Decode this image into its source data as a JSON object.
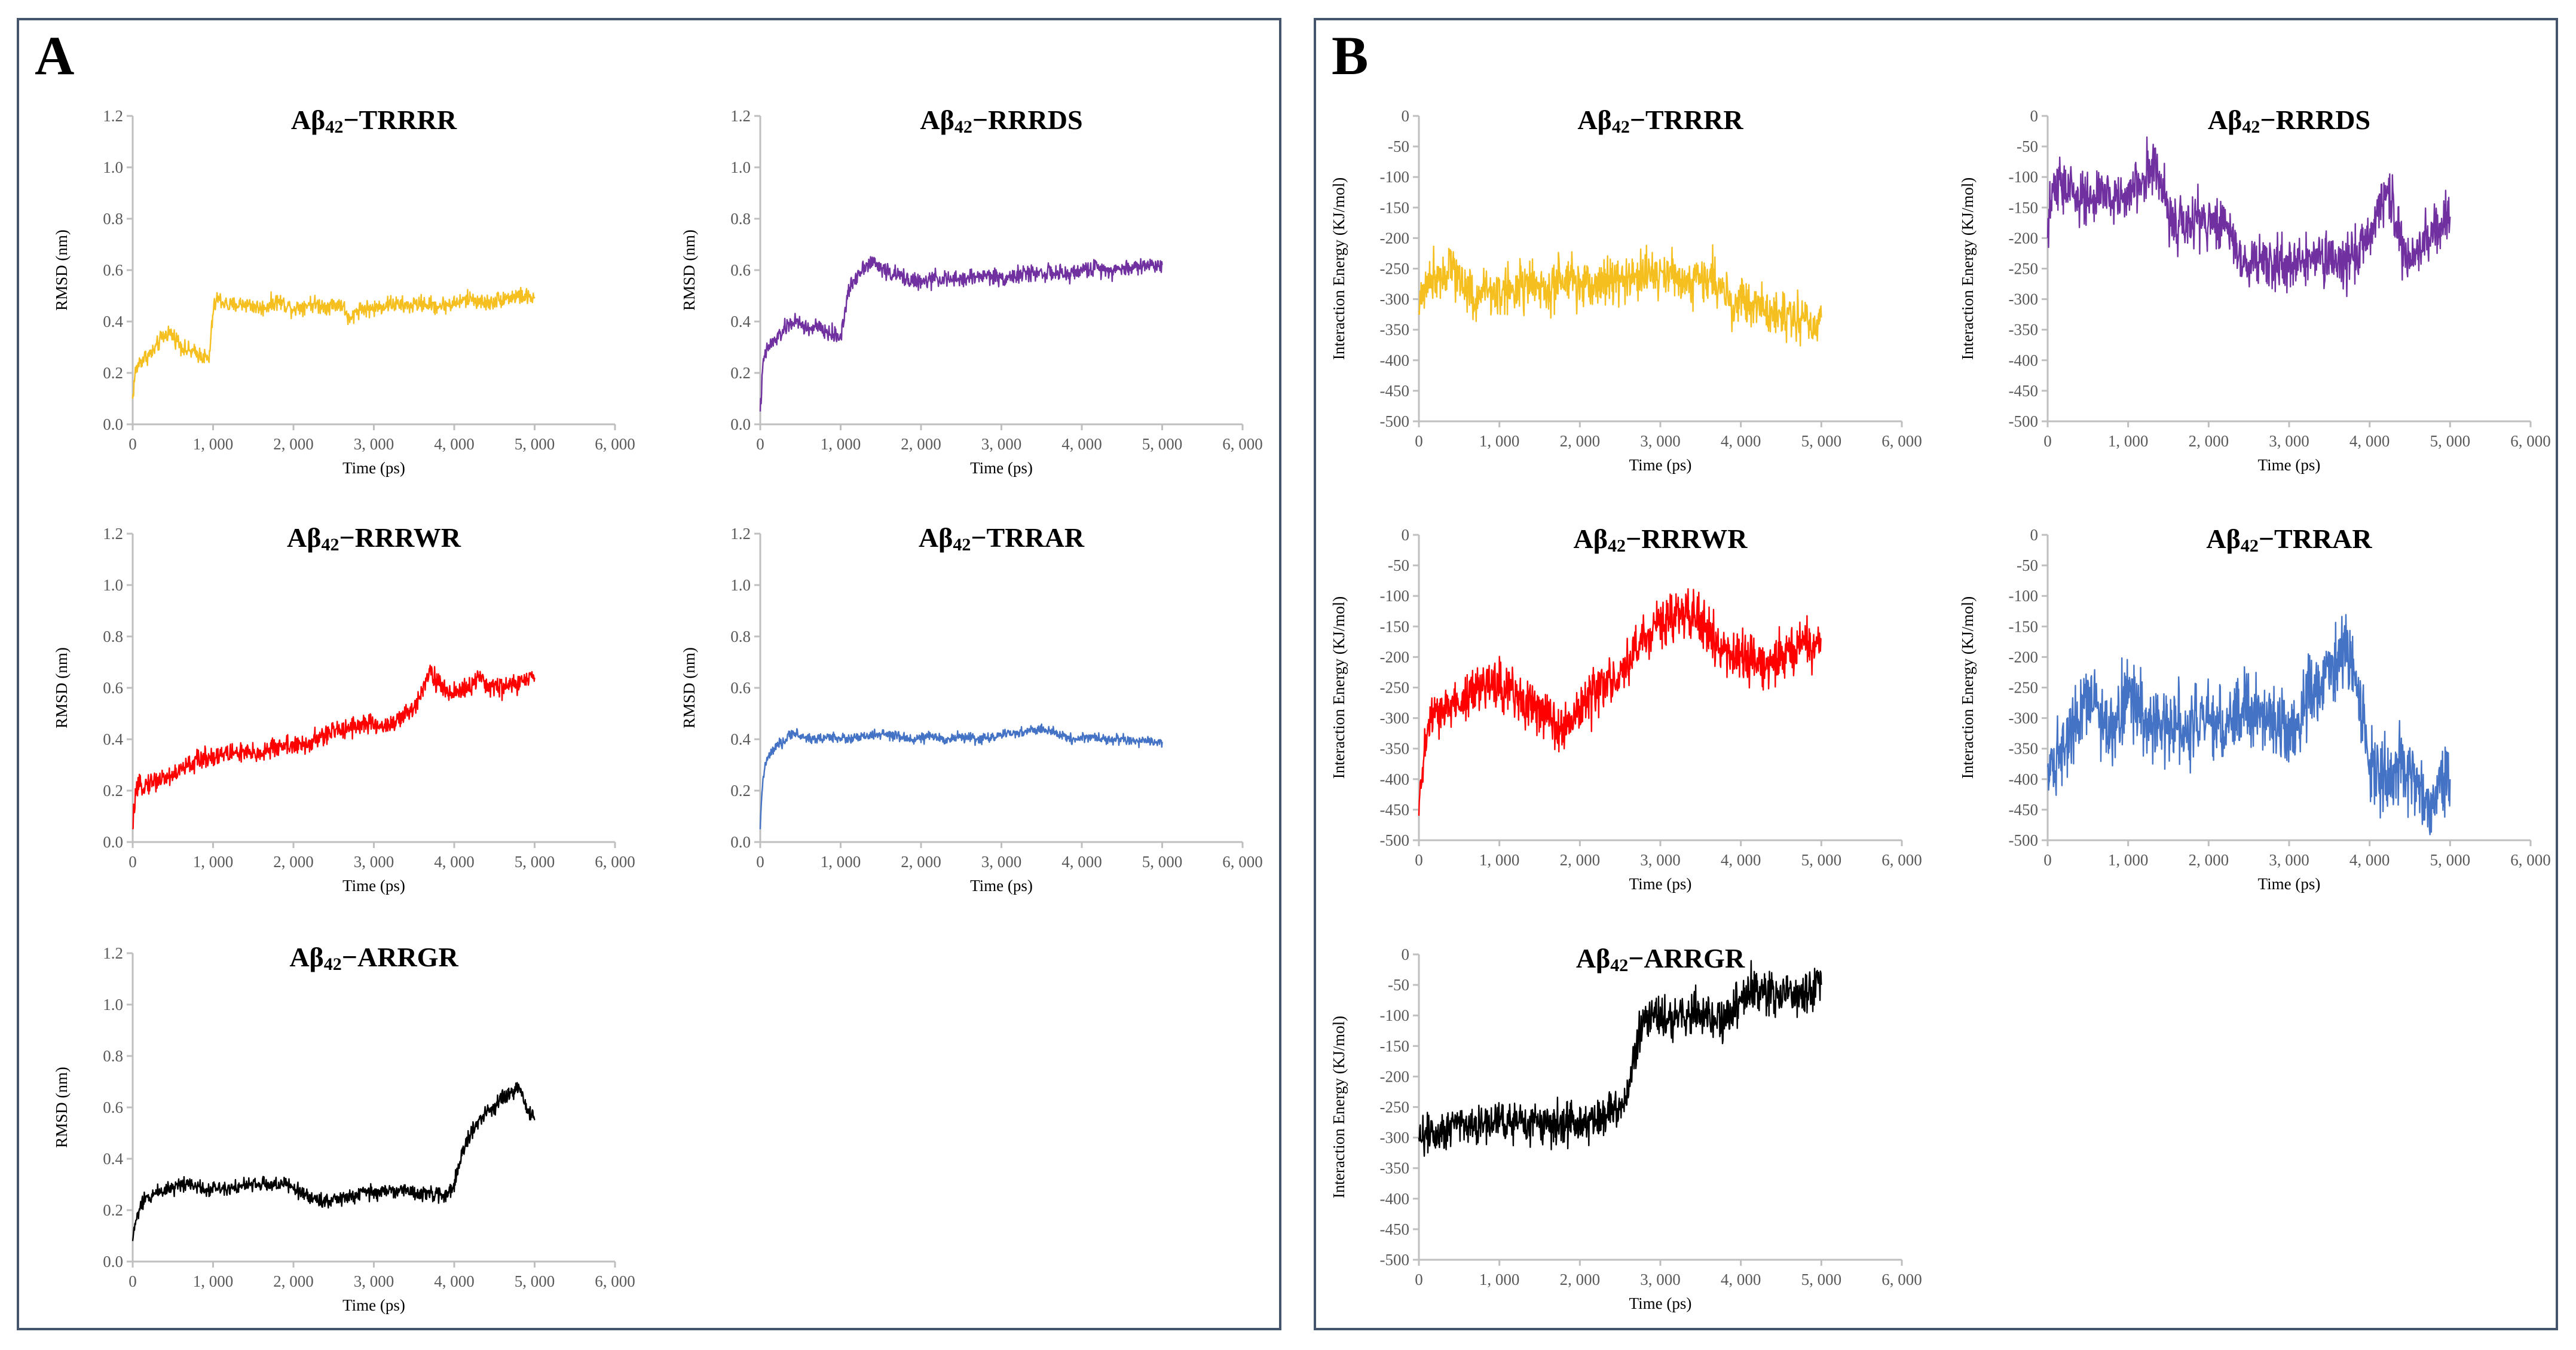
{
  "panels": [
    {
      "id": "A",
      "label": "A"
    },
    {
      "id": "B",
      "label": "B"
    }
  ],
  "chart_data": [
    {
      "panel": "A",
      "type": "line",
      "title_base": "Aβ",
      "title_sub": "42",
      "title_suffix": "−TRRRR",
      "color": "#f5bf1f",
      "xlabel": "Time (ps)",
      "ylabel": "RMSD (nm)",
      "xlim": [
        0,
        6000
      ],
      "ylim": [
        0,
        1.2
      ],
      "xticks": [
        "0",
        "1, 000",
        "2, 000",
        "3, 000",
        "4, 000",
        "5, 000",
        "6, 000"
      ],
      "yticks": [
        "0.0",
        "0.2",
        "0.4",
        "0.6",
        "0.8",
        "1.0",
        "1.2"
      ],
      "x": [
        0,
        30,
        80,
        150,
        250,
        350,
        450,
        550,
        650,
        750,
        850,
        950,
        1000,
        1050,
        1200,
        1400,
        1600,
        1800,
        2000,
        2200,
        2400,
        2600,
        2700,
        2800,
        3000,
        3200,
        3400,
        3600,
        3800,
        4000,
        4200,
        4400,
        4600,
        4800,
        5000
      ],
      "y": [
        0.1,
        0.2,
        0.24,
        0.26,
        0.28,
        0.33,
        0.36,
        0.33,
        0.29,
        0.28,
        0.27,
        0.25,
        0.44,
        0.49,
        0.46,
        0.47,
        0.45,
        0.48,
        0.45,
        0.47,
        0.46,
        0.47,
        0.4,
        0.45,
        0.45,
        0.47,
        0.46,
        0.47,
        0.46,
        0.47,
        0.49,
        0.47,
        0.49,
        0.5,
        0.49
      ],
      "noise": 0.02
    },
    {
      "panel": "A",
      "type": "line",
      "title_base": "Aβ",
      "title_sub": "42",
      "title_suffix": "−RRRDS",
      "color": "#7030a0",
      "xlabel": "Time (ps)",
      "ylabel": "RMSD (nm)",
      "xlim": [
        0,
        6000
      ],
      "ylim": [
        0,
        1.2
      ],
      "xticks": [
        "0",
        "1, 000",
        "2, 000",
        "3, 000",
        "4, 000",
        "5, 000",
        "6, 000"
      ],
      "yticks": [
        "0.0",
        "0.2",
        "0.4",
        "0.6",
        "0.8",
        "1.0",
        "1.2"
      ],
      "x": [
        0,
        40,
        100,
        200,
        300,
        400,
        500,
        600,
        700,
        800,
        900,
        1000,
        1100,
        1200,
        1300,
        1400,
        1600,
        1800,
        2000,
        2200,
        2400,
        2600,
        2800,
        3000,
        3200,
        3400,
        3600,
        3800,
        4000,
        4200,
        4400,
        4600,
        4800,
        5000
      ],
      "y": [
        0.05,
        0.25,
        0.3,
        0.33,
        0.37,
        0.4,
        0.39,
        0.37,
        0.38,
        0.36,
        0.35,
        0.34,
        0.52,
        0.58,
        0.62,
        0.63,
        0.59,
        0.57,
        0.55,
        0.57,
        0.56,
        0.57,
        0.58,
        0.57,
        0.58,
        0.59,
        0.59,
        0.58,
        0.6,
        0.61,
        0.6,
        0.61,
        0.62,
        0.62
      ],
      "noise": 0.02
    },
    {
      "panel": "A",
      "type": "line",
      "title_base": "Aβ",
      "title_sub": "42",
      "title_suffix": "−RRRWR",
      "color": "#ff0000",
      "xlabel": "Time (ps)",
      "ylabel": "RMSD (nm)",
      "xlim": [
        0,
        6000
      ],
      "ylim": [
        0,
        1.2
      ],
      "xticks": [
        "0",
        "1, 000",
        "2, 000",
        "3, 000",
        "4, 000",
        "5, 000",
        "6, 000"
      ],
      "yticks": [
        "0.0",
        "0.2",
        "0.4",
        "0.6",
        "0.8",
        "1.0",
        "1.2"
      ],
      "x": [
        0,
        30,
        100,
        300,
        500,
        700,
        900,
        1100,
        1300,
        1500,
        1700,
        1900,
        2100,
        2300,
        2500,
        2700,
        2900,
        3100,
        3300,
        3500,
        3600,
        3700,
        3800,
        3900,
        4100,
        4300,
        4500,
        4700,
        4900,
        5000
      ],
      "y": [
        0.05,
        0.18,
        0.22,
        0.24,
        0.26,
        0.3,
        0.33,
        0.34,
        0.35,
        0.34,
        0.36,
        0.38,
        0.37,
        0.4,
        0.43,
        0.45,
        0.46,
        0.45,
        0.47,
        0.52,
        0.6,
        0.67,
        0.62,
        0.58,
        0.59,
        0.63,
        0.6,
        0.61,
        0.63,
        0.64
      ],
      "noise": 0.025
    },
    {
      "panel": "A",
      "type": "line",
      "title_base": "Aβ",
      "title_sub": "42",
      "title_suffix": "−TRRAR",
      "color": "#4472c4",
      "xlabel": "Time (ps)",
      "ylabel": "RMSD (nm)",
      "xlim": [
        0,
        6000
      ],
      "ylim": [
        0,
        1.2
      ],
      "xticks": [
        "0",
        "1, 000",
        "2, 000",
        "3, 000",
        "4, 000",
        "5, 000",
        "6, 000"
      ],
      "yticks": [
        "0.0",
        "0.2",
        "0.4",
        "0.6",
        "0.8",
        "1.0",
        "1.2"
      ],
      "x": [
        0,
        20,
        60,
        120,
        200,
        300,
        400,
        500,
        700,
        900,
        1100,
        1300,
        1500,
        1700,
        1900,
        2100,
        2300,
        2500,
        2700,
        2900,
        3100,
        3300,
        3500,
        3700,
        3900,
        4100,
        4300,
        4500,
        4700,
        4900,
        5000
      ],
      "y": [
        0.05,
        0.2,
        0.3,
        0.34,
        0.37,
        0.39,
        0.43,
        0.41,
        0.4,
        0.41,
        0.4,
        0.41,
        0.42,
        0.41,
        0.4,
        0.41,
        0.4,
        0.41,
        0.4,
        0.41,
        0.42,
        0.43,
        0.44,
        0.42,
        0.4,
        0.41,
        0.4,
        0.4,
        0.39,
        0.39,
        0.39
      ],
      "noise": 0.012
    },
    {
      "panel": "A",
      "type": "line",
      "title_base": "Aβ",
      "title_sub": "42",
      "title_suffix": "−ARRGR",
      "color": "#000000",
      "xlabel": "Time (ps)",
      "ylabel": "RMSD (nm)",
      "xlim": [
        0,
        6000
      ],
      "ylim": [
        0,
        1.2
      ],
      "xticks": [
        "0",
        "1, 000",
        "2, 000",
        "3, 000",
        "4, 000",
        "5, 000",
        "6, 000"
      ],
      "yticks": [
        "0.0",
        "0.2",
        "0.4",
        "0.6",
        "0.8",
        "1.0",
        "1.2"
      ],
      "x": [
        0,
        30,
        80,
        150,
        300,
        500,
        700,
        900,
        1100,
        1300,
        1500,
        1700,
        1900,
        2100,
        2200,
        2300,
        2500,
        2700,
        2900,
        3100,
        3300,
        3500,
        3700,
        3900,
        4000,
        4100,
        4200,
        4400,
        4600,
        4700,
        4800,
        4900,
        5000
      ],
      "y": [
        0.08,
        0.15,
        0.2,
        0.24,
        0.27,
        0.29,
        0.31,
        0.28,
        0.29,
        0.29,
        0.3,
        0.3,
        0.3,
        0.27,
        0.25,
        0.24,
        0.24,
        0.25,
        0.27,
        0.27,
        0.28,
        0.27,
        0.26,
        0.26,
        0.3,
        0.42,
        0.5,
        0.58,
        0.63,
        0.65,
        0.68,
        0.6,
        0.55
      ],
      "noise": 0.018
    },
    {
      "panel": "B",
      "type": "line",
      "title_base": "Aβ",
      "title_sub": "42",
      "title_suffix": "−TRRRR",
      "color": "#f5bf1f",
      "xlabel": "Time (ps)",
      "ylabel": "Interaction Energy (KJ/mol)",
      "xlim": [
        0,
        6000
      ],
      "ylim": [
        -500,
        0
      ],
      "xticks": [
        "0",
        "1, 000",
        "2, 000",
        "3, 000",
        "4, 000",
        "5, 000",
        "6, 000"
      ],
      "yticks": [
        "0",
        "-50",
        "-100",
        "-150",
        "-200",
        "-250",
        "-300",
        "-350",
        "-400",
        "-450",
        "-500"
      ],
      "x": [
        0,
        40,
        100,
        200,
        300,
        400,
        500,
        600,
        700,
        800,
        1000,
        1200,
        1400,
        1600,
        1800,
        2000,
        2200,
        2400,
        2600,
        2800,
        3000,
        3200,
        3400,
        3600,
        3800,
        3900,
        4000,
        4200,
        4400,
        4600,
        4800,
        5000
      ],
      "y": [
        -320,
        -290,
        -270,
        -260,
        -255,
        -245,
        -265,
        -280,
        -300,
        -285,
        -290,
        -280,
        -275,
        -290,
        -270,
        -280,
        -275,
        -265,
        -270,
        -260,
        -255,
        -265,
        -270,
        -265,
        -280,
        -320,
        -300,
        -310,
        -330,
        -320,
        -340,
        -330
      ],
      "noise": 25
    },
    {
      "panel": "B",
      "type": "line",
      "title_base": "Aβ",
      "title_sub": "42",
      "title_suffix": "−RRRDS",
      "color": "#7030a0",
      "xlabel": "Time (ps)",
      "ylabel": "Interaction Energy (KJ/mol)",
      "xlim": [
        0,
        6000
      ],
      "ylim": [
        -500,
        0
      ],
      "xticks": [
        "0",
        "1, 000",
        "2, 000",
        "3, 000",
        "4, 000",
        "5, 000",
        "6, 000"
      ],
      "yticks": [
        "0",
        "-50",
        "-100",
        "-150",
        "-200",
        "-250",
        "-300",
        "-350",
        "-400",
        "-450",
        "-500"
      ],
      "x": [
        0,
        50,
        150,
        300,
        500,
        700,
        900,
        1100,
        1200,
        1300,
        1400,
        1500,
        1600,
        1700,
        1800,
        1900,
        2000,
        2200,
        2400,
        2500,
        2600,
        2800,
        3000,
        3200,
        3400,
        3600,
        3800,
        4000,
        4100,
        4200,
        4300,
        4400,
        4500,
        4600,
        4700,
        4800,
        4900,
        5000
      ],
      "y": [
        -200,
        -130,
        -110,
        -125,
        -140,
        -130,
        -135,
        -120,
        -100,
        -70,
        -110,
        -160,
        -170,
        -190,
        -175,
        -165,
        -180,
        -170,
        -230,
        -245,
        -240,
        -235,
        -245,
        -240,
        -235,
        -245,
        -230,
        -200,
        -150,
        -130,
        -160,
        -210,
        -240,
        -230,
        -200,
        -190,
        -175,
        -165
      ],
      "noise": 28
    },
    {
      "panel": "B",
      "type": "line",
      "title_base": "Aβ",
      "title_sub": "42",
      "title_suffix": "−RRRWR",
      "color": "#ff0000",
      "xlabel": "Time (ps)",
      "ylabel": "Interaction Energy (KJ/mol)",
      "xlim": [
        0,
        6000
      ],
      "ylim": [
        -500,
        0
      ],
      "xticks": [
        "0",
        "1, 000",
        "2, 000",
        "3, 000",
        "4, 000",
        "5, 000",
        "6, 000"
      ],
      "yticks": [
        "0",
        "-50",
        "-100",
        "-150",
        "-200",
        "-250",
        "-300",
        "-350",
        "-400",
        "-450",
        "-500"
      ],
      "x": [
        0,
        30,
        80,
        150,
        300,
        500,
        700,
        900,
        1100,
        1300,
        1500,
        1700,
        1900,
        2100,
        2300,
        2500,
        2700,
        2900,
        3100,
        3300,
        3500,
        3700,
        3900,
        4100,
        4300,
        4500,
        4700,
        4900,
        5000
      ],
      "y": [
        -460,
        -400,
        -340,
        -300,
        -290,
        -270,
        -260,
        -240,
        -250,
        -270,
        -290,
        -310,
        -300,
        -270,
        -250,
        -230,
        -190,
        -150,
        -140,
        -130,
        -140,
        -180,
        -210,
        -200,
        -210,
        -200,
        -190,
        -180,
        -170
      ],
      "noise": 25
    },
    {
      "panel": "B",
      "type": "line",
      "title_base": "Aβ",
      "title_sub": "42",
      "title_suffix": "−TRRAR",
      "color": "#4472c4",
      "xlabel": "Time (ps)",
      "ylabel": "Interaction Energy (KJ/mol)",
      "xlim": [
        0,
        6000
      ],
      "ylim": [
        -500,
        0
      ],
      "xticks": [
        "0",
        "1, 000",
        "2, 000",
        "3, 000",
        "4, 000",
        "5, 000",
        "6, 000"
      ],
      "yticks": [
        "0",
        "-50",
        "-100",
        "-150",
        "-200",
        "-250",
        "-300",
        "-350",
        "-400",
        "-450",
        "-500"
      ],
      "x": [
        0,
        100,
        200,
        300,
        400,
        500,
        600,
        700,
        800,
        1000,
        1200,
        1400,
        1600,
        1800,
        2000,
        2200,
        2400,
        2600,
        2800,
        3000,
        3200,
        3400,
        3500,
        3600,
        3700,
        3800,
        3900,
        4000,
        4100,
        4200,
        4400,
        4600,
        4700,
        4800,
        4900,
        5000
      ],
      "y": [
        -380,
        -370,
        -340,
        -310,
        -280,
        -260,
        -280,
        -300,
        -330,
        -260,
        -300,
        -320,
        -300,
        -310,
        -300,
        -320,
        -290,
        -280,
        -300,
        -330,
        -280,
        -240,
        -230,
        -200,
        -190,
        -210,
        -300,
        -380,
        -390,
        -400,
        -370,
        -420,
        -440,
        -420,
        -410,
        -400
      ],
      "noise": 38
    },
    {
      "panel": "B",
      "type": "line",
      "title_base": "Aβ",
      "title_sub": "42",
      "title_suffix": "−ARRGR",
      "color": "#000000",
      "xlabel": "Time (ps)",
      "ylabel": "Interaction Energy (KJ/mol)",
      "xlim": [
        0,
        6000
      ],
      "ylim": [
        -500,
        0
      ],
      "xticks": [
        "0",
        "1, 000",
        "2, 000",
        "3, 000",
        "4, 000",
        "5, 000",
        "6, 000"
      ],
      "yticks": [
        "0",
        "-50",
        "-100",
        "-150",
        "-200",
        "-250",
        "-300",
        "-350",
        "-400",
        "-450",
        "-500"
      ],
      "x": [
        0,
        100,
        300,
        500,
        700,
        900,
        1100,
        1300,
        1500,
        1700,
        1900,
        2100,
        2300,
        2500,
        2600,
        2700,
        2800,
        2900,
        3100,
        3300,
        3500,
        3700,
        3900,
        4000,
        4100,
        4200,
        4300,
        4500,
        4700,
        4900,
        5000
      ],
      "y": [
        -300,
        -295,
        -285,
        -270,
        -280,
        -275,
        -270,
        -280,
        -275,
        -280,
        -270,
        -275,
        -260,
        -250,
        -230,
        -150,
        -110,
        -100,
        -105,
        -100,
        -95,
        -110,
        -90,
        -80,
        -60,
        -55,
        -60,
        -65,
        -60,
        -55,
        -50
      ],
      "noise": 22
    }
  ]
}
